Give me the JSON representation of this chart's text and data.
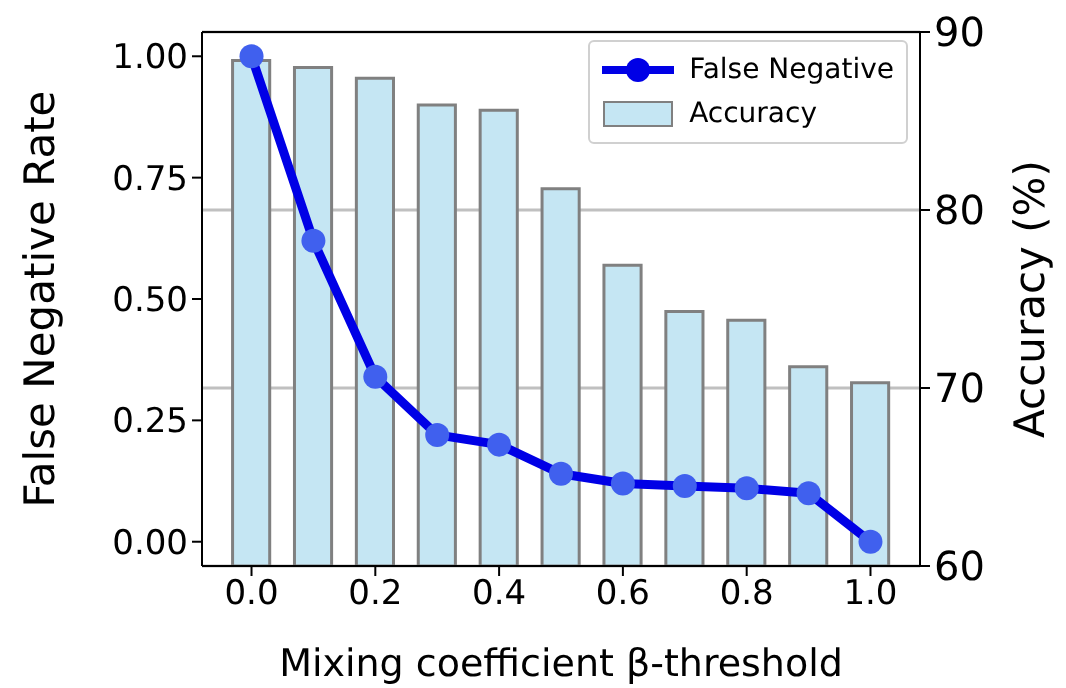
{
  "chart_data": {
    "type": "bar",
    "xlabel": "Mixing coefficient β-threshold",
    "ylabel": "False Negative Rate",
    "y2label": "Accuracy (%)",
    "x": [
      0.0,
      0.1,
      0.2,
      0.3,
      0.4,
      0.5,
      0.6,
      0.7,
      0.8,
      0.9,
      1.0
    ],
    "series": [
      {
        "name": "False Negative",
        "type": "line",
        "color": "#0000e6",
        "values": [
          1.0,
          0.62,
          0.34,
          0.22,
          0.2,
          0.14,
          0.12,
          0.115,
          0.11,
          0.1,
          0.0
        ]
      },
      {
        "name": "Accuracy",
        "axis": "y2",
        "color": "#c5e6f3",
        "values": [
          88.4,
          88.0,
          87.4,
          85.9,
          85.6,
          81.2,
          76.9,
          74.3,
          73.8,
          71.2,
          70.3
        ]
      }
    ],
    "xlim": [
      -0.08,
      1.08
    ],
    "xticks": [
      {
        "value": 0,
        "label": "0.0"
      },
      {
        "value": 0.2,
        "label": "0.2"
      },
      {
        "value": 0.4,
        "label": "0.4"
      },
      {
        "value": 0.6,
        "label": "0.6"
      },
      {
        "value": 0.8,
        "label": "0.8"
      },
      {
        "value": 1,
        "label": "1.0"
      }
    ],
    "ylim": [
      -0.05,
      1.05
    ],
    "yticks": [
      {
        "value": 0,
        "label": "0.00"
      },
      {
        "value": 0.25,
        "label": "0.25"
      },
      {
        "value": 0.5,
        "label": "0.50"
      },
      {
        "value": 0.75,
        "label": "0.75"
      },
      {
        "value": 1,
        "label": "1.00"
      }
    ],
    "y2lim": [
      60,
      90
    ],
    "y2ticks": [
      60,
      70,
      80,
      90
    ],
    "grid": "y",
    "legend": "top right",
    "marker": "circle",
    "line_style": "solid"
  }
}
